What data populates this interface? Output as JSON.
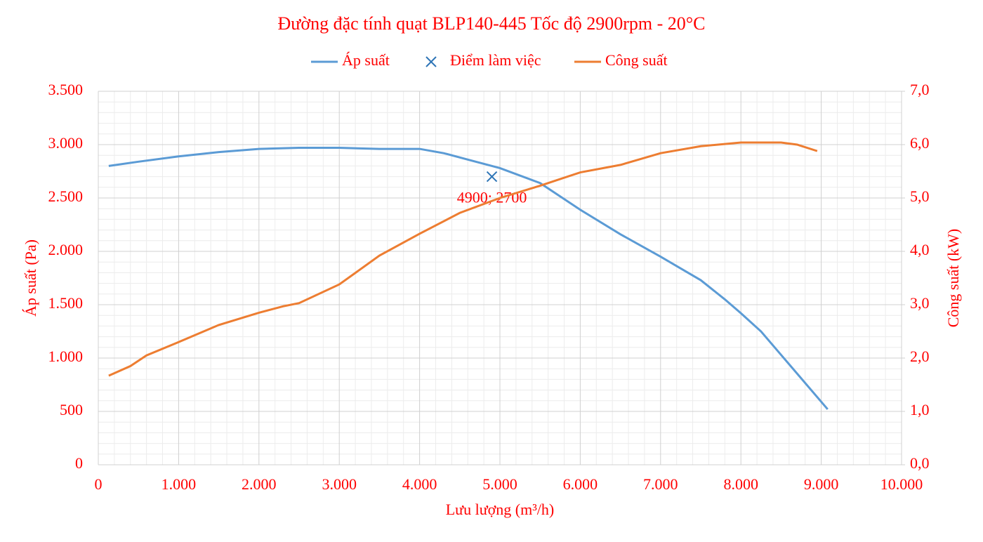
{
  "chart_data": {
    "type": "line",
    "title": "Đường đặc tính quạt BLP140-445 Tốc độ 2900rpm - 20°C",
    "x_label": "Lưu lượng (m³/h)",
    "y_label": "Áp suất (Pa)",
    "y2_label": "Công suất (kW)",
    "xlim": [
      0,
      10000
    ],
    "xticks": [
      0,
      {
        "value": 1000,
        "label": "1.000"
      },
      {
        "value": 2000,
        "label": "2.000"
      },
      {
        "value": 3000,
        "label": "3.000"
      },
      {
        "value": 4000,
        "label": "4.000"
      },
      {
        "value": 5000,
        "label": "5.000"
      },
      {
        "value": 6000,
        "label": "6.000"
      },
      {
        "value": 7000,
        "label": "7.000"
      },
      {
        "value": 8000,
        "label": "8.000"
      },
      {
        "value": 9000,
        "label": "9.000"
      },
      {
        "value": 10000,
        "label": "10.000"
      }
    ],
    "ylim": [
      0,
      3500
    ],
    "yticks": [
      0,
      500,
      {
        "value": 1000,
        "label": "1.000"
      },
      {
        "value": 1500,
        "label": "1.500"
      },
      {
        "value": 2000,
        "label": "2.000"
      },
      {
        "value": 2500,
        "label": "2.500"
      },
      {
        "value": 3000,
        "label": "3.000"
      },
      {
        "value": 3500,
        "label": "3.500"
      }
    ],
    "y2lim": [
      0,
      7
    ],
    "y2ticks": [
      {
        "value": 0,
        "label": "0,0"
      },
      {
        "value": 1,
        "label": "1,0"
      },
      {
        "value": 2,
        "label": "2,0"
      },
      {
        "value": 3,
        "label": "3,0"
      },
      {
        "value": 4,
        "label": "4,0"
      },
      {
        "value": 5,
        "label": "5,0"
      },
      {
        "value": 6,
        "label": "6,0"
      },
      {
        "value": 7,
        "label": "7,0"
      }
    ],
    "grid": true,
    "minor_grid": true,
    "legend": "top",
    "series": [
      {
        "name": "Áp suất",
        "type": "line",
        "color": "#5b9bd5",
        "x": [
          130,
          500,
          1000,
          1500,
          2000,
          2500,
          3000,
          3500,
          4000,
          4300,
          4600,
          5000,
          5500,
          6000,
          6500,
          7000,
          7500,
          7800,
          8000,
          8250,
          8500,
          9080
        ],
        "values": [
          2800,
          2840,
          2890,
          2930,
          2960,
          2970,
          2970,
          2960,
          2960,
          2920,
          2860,
          2780,
          2640,
          2390,
          2160,
          1950,
          1730,
          1550,
          1420,
          1250,
          1030,
          520
        ]
      },
      {
        "name": "Điểm làm việc",
        "type": "scatter",
        "color": "#2e75b6",
        "x": [
          4900
        ],
        "values": [
          2700
        ],
        "value_labels": [
          "4900; 2700"
        ]
      },
      {
        "name": "Công suất",
        "type": "line",
        "axis": "y2",
        "color": "#ed7d31",
        "x": [
          130,
          400,
          600,
          1000,
          1500,
          2000,
          2300,
          2500,
          3000,
          3500,
          4000,
          4500,
          5000,
          5500,
          6000,
          6500,
          7000,
          7500,
          8000,
          8500,
          8700,
          8950
        ],
        "values": [
          1.67,
          1.85,
          2.05,
          2.3,
          2.62,
          2.85,
          2.97,
          3.03,
          3.38,
          3.92,
          4.33,
          4.72,
          5.0,
          5.23,
          5.48,
          5.62,
          5.84,
          5.97,
          6.04,
          6.04,
          6.0,
          5.88
        ]
      }
    ]
  }
}
